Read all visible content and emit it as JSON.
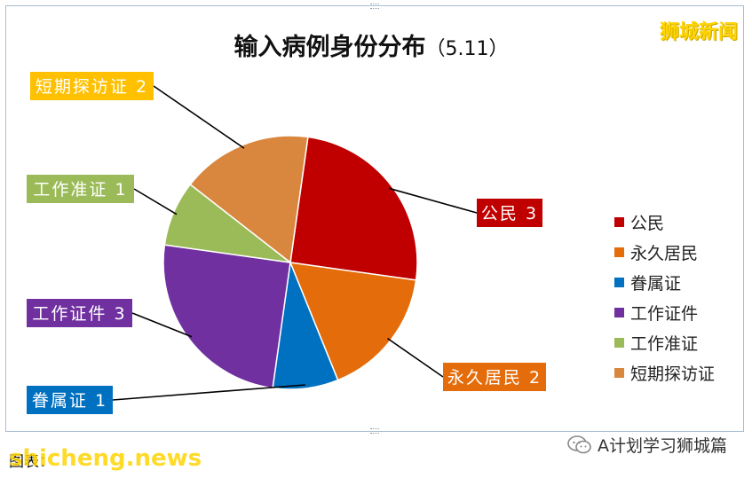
{
  "brand": "狮城新闻",
  "source_label": "图表：",
  "watermark": "shicheng.news",
  "wechat_account": "A计划学习狮城篇",
  "colors": {
    "公民": "#c00000",
    "永久居民": "#e46c0a",
    "眷属证": "#0070c0",
    "工作证件": "#7030a0",
    "工作准证": "#9bbb59",
    "短期探访证": "#d9863e"
  },
  "chart_data": {
    "type": "pie",
    "title": "输入病例身份分布",
    "subtitle": "（5.11）",
    "legend_position": "right",
    "slices": [
      {
        "name": "公民",
        "value": 3,
        "label": "公民 3"
      },
      {
        "name": "永久居民",
        "value": 2,
        "label": "永久居民 2"
      },
      {
        "name": "眷属证",
        "value": 1,
        "label": "眷属证 1"
      },
      {
        "name": "工作证件",
        "value": 3,
        "label": "工作证件 3"
      },
      {
        "name": "工作准证",
        "value": 1,
        "label": "工作准证 1"
      },
      {
        "name": "短期探访证",
        "value": 2,
        "label": "短期探访证 2"
      }
    ]
  }
}
